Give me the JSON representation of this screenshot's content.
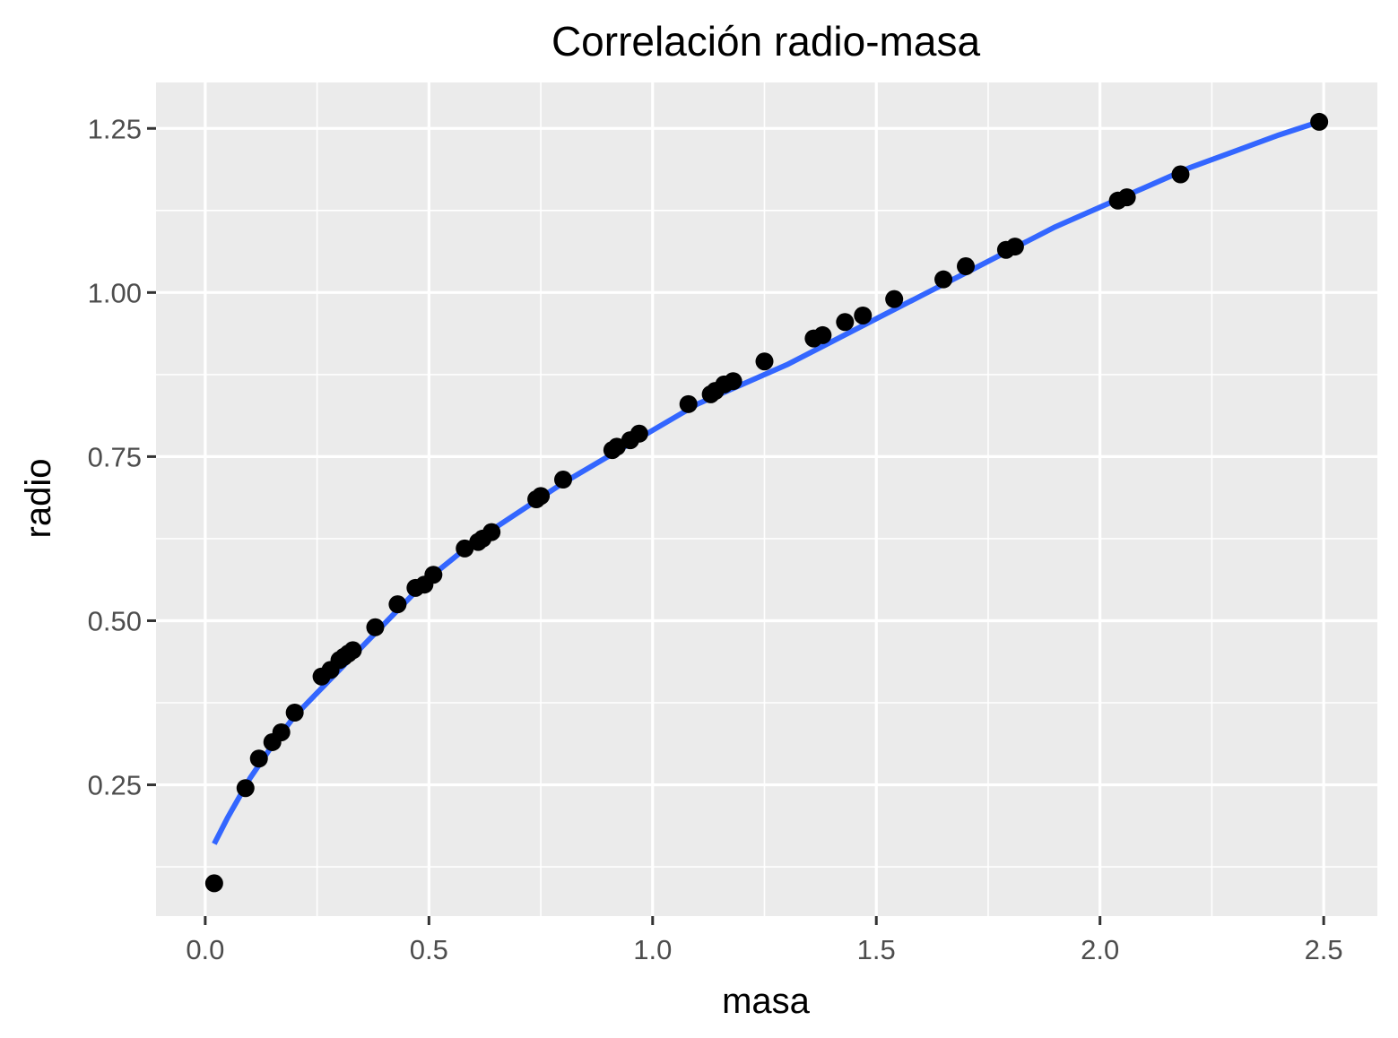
{
  "chart_data": {
    "type": "scatter",
    "title": "Correlación radio-masa",
    "xlabel": "masa",
    "ylabel": "radio",
    "xlim": [
      -0.11,
      2.62
    ],
    "ylim": [
      0.05,
      1.32
    ],
    "x_ticks": [
      0.0,
      0.5,
      1.0,
      1.5,
      2.0,
      2.5
    ],
    "x_tick_labels": [
      "0.0",
      "0.5",
      "1.0",
      "1.5",
      "2.0",
      "2.5"
    ],
    "y_ticks": [
      0.25,
      0.5,
      0.75,
      1.0,
      1.25
    ],
    "y_tick_labels": [
      "0.25",
      "0.50",
      "0.75",
      "1.00",
      "1.25"
    ],
    "grid": true,
    "background": "#ebebeb",
    "grid_color": "#ffffff",
    "point_color": "#000000",
    "line_color": "#3366ff",
    "points": {
      "x": [
        0.02,
        0.09,
        0.12,
        0.15,
        0.17,
        0.2,
        0.26,
        0.28,
        0.3,
        0.31,
        0.32,
        0.33,
        0.38,
        0.43,
        0.47,
        0.49,
        0.51,
        0.58,
        0.61,
        0.62,
        0.64,
        0.74,
        0.75,
        0.8,
        0.91,
        0.92,
        0.95,
        0.97,
        1.08,
        1.13,
        1.14,
        1.16,
        1.18,
        1.25,
        1.36,
        1.38,
        1.43,
        1.47,
        1.54,
        1.65,
        1.7,
        1.79,
        1.81,
        2.04,
        2.06,
        2.18,
        2.49
      ],
      "y": [
        0.1,
        0.245,
        0.29,
        0.315,
        0.33,
        0.36,
        0.415,
        0.425,
        0.44,
        0.445,
        0.45,
        0.455,
        0.49,
        0.525,
        0.55,
        0.555,
        0.57,
        0.61,
        0.62,
        0.625,
        0.635,
        0.685,
        0.69,
        0.715,
        0.76,
        0.765,
        0.775,
        0.785,
        0.83,
        0.845,
        0.85,
        0.86,
        0.865,
        0.895,
        0.93,
        0.935,
        0.955,
        0.965,
        0.99,
        1.02,
        1.04,
        1.065,
        1.07,
        1.14,
        1.145,
        1.18,
        1.26
      ]
    },
    "trend_line": {
      "x": [
        0.02,
        0.05,
        0.1,
        0.15,
        0.2,
        0.25,
        0.3,
        0.35,
        0.4,
        0.5,
        0.6,
        0.7,
        0.8,
        0.9,
        1.0,
        1.1,
        1.2,
        1.3,
        1.4,
        1.5,
        1.6,
        1.7,
        1.8,
        1.9,
        2.0,
        2.1,
        2.2,
        2.3,
        2.4,
        2.49
      ],
      "y": [
        0.16,
        0.2,
        0.26,
        0.31,
        0.355,
        0.39,
        0.425,
        0.46,
        0.495,
        0.565,
        0.62,
        0.665,
        0.71,
        0.75,
        0.79,
        0.83,
        0.86,
        0.89,
        0.925,
        0.96,
        0.995,
        1.03,
        1.065,
        1.1,
        1.13,
        1.16,
        1.19,
        1.215,
        1.24,
        1.26
      ]
    }
  }
}
